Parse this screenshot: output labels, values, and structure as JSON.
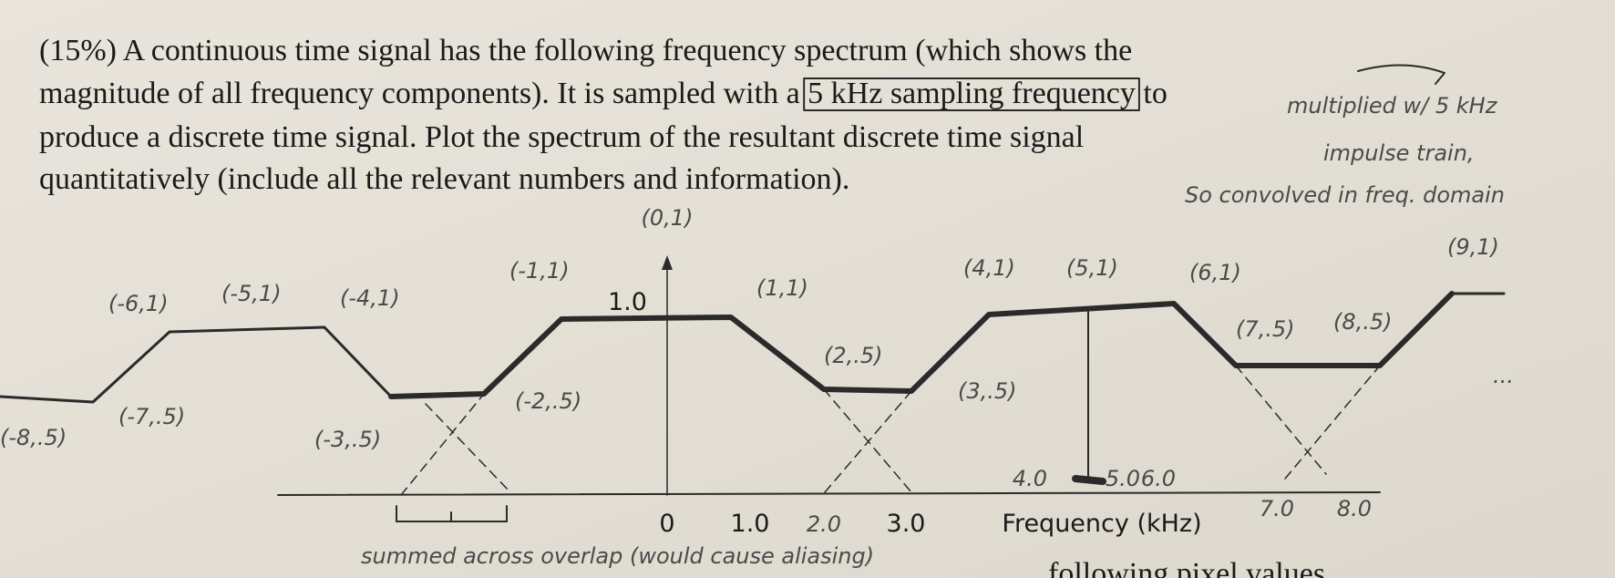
{
  "problem": {
    "lines": [
      "(15%) A continuous time signal has the following frequency spectrum (which shows the",
      "magnitude of all frequency components). It is sampled with a",
      "produce a discrete time signal. Plot the spectrum of the resultant discrete time signal",
      "quantitatively (include all the relevant numbers and information)."
    ],
    "boxed": "5 kHz sampling frequency",
    "line2_end": "to"
  },
  "figure": {
    "y_label": "1.0",
    "x_ticks": [
      "0",
      "1.0",
      "3.0"
    ],
    "x_axis_label": "Frequency (kHz)"
  },
  "handwriting": {
    "note_lines": [
      "multiplied w/ 5 kHz",
      "impulse train,",
      "So convolved in freq. domain"
    ],
    "point_labels": [
      "(0,1)",
      "(-6,1)",
      "(-5,1)",
      "(-4,1)",
      "(-1,1)",
      "(1,1)",
      "(4,1)",
      "(5,1)",
      "(6,1)",
      "(9,1)",
      "(7,.5)",
      "(8,.5)",
      "(2,.5)",
      "(3,.5)",
      "(-2,.5)",
      "(-3,.5)",
      "(-7,.5)",
      "(-8,.5)"
    ],
    "x_ticks": [
      "2.0",
      "4.0",
      "5.0",
      "6.0",
      "7.0",
      "8.0"
    ],
    "ellipsis": "...",
    "overlap_note": "summed across overlap (would cause aliasing)"
  },
  "footer_fragment": "following pixel values"
}
